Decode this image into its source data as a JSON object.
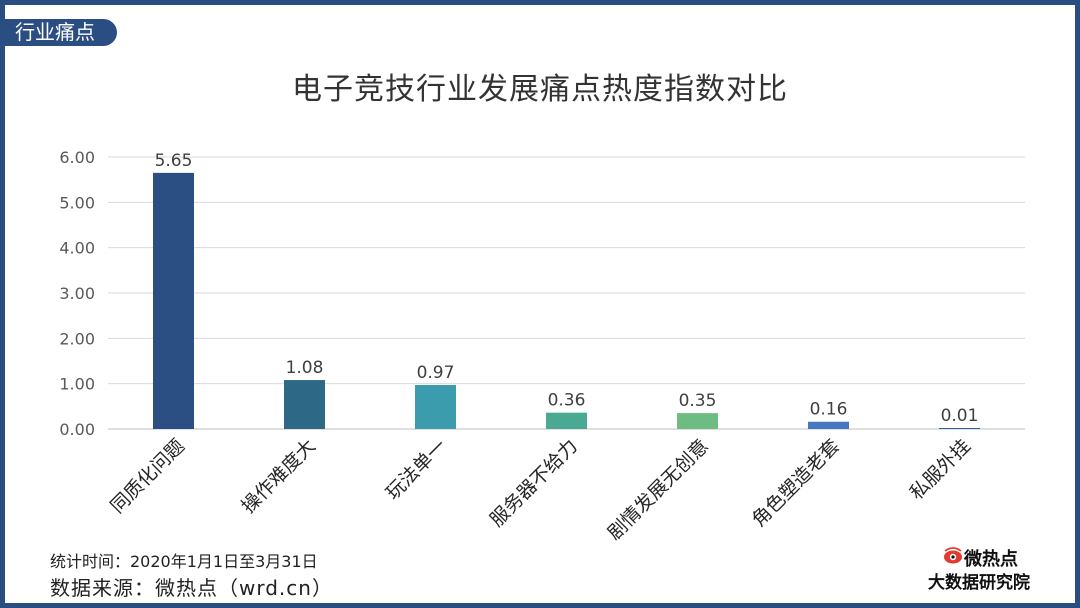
{
  "section_tag": "行业痛点",
  "footer": {
    "period": "统计时间：2020年1月1日至3月31日",
    "source": "数据来源：微热点（wrd.cn）"
  },
  "logo": {
    "name": "微热点",
    "subtitle": "大数据研究院"
  },
  "chart_data": {
    "type": "bar",
    "title": "电子竞技行业发展痛点热度指数对比",
    "categories": [
      "同质化问题",
      "操作难度大",
      "玩法单一",
      "服务器不给力",
      "剧情发展无创意",
      "角色塑造老套",
      "私服外挂"
    ],
    "values": [
      5.65,
      1.08,
      0.97,
      0.36,
      0.35,
      0.16,
      0.01
    ],
    "value_labels": [
      "5.65",
      "1.08",
      "0.97",
      "0.36",
      "0.35",
      "0.16",
      "0.01"
    ],
    "yticks": [
      "0.00",
      "1.00",
      "2.00",
      "3.00",
      "4.00",
      "5.00",
      "6.00"
    ],
    "ylim": [
      0,
      6
    ],
    "grid": true,
    "xlabel": "",
    "ylabel": "",
    "bar_colors": [
      "#2b4f82",
      "#2e6887",
      "#3b9cad",
      "#4aa993",
      "#6dbd82",
      "#4677c2",
      "#2f5e9e"
    ]
  }
}
